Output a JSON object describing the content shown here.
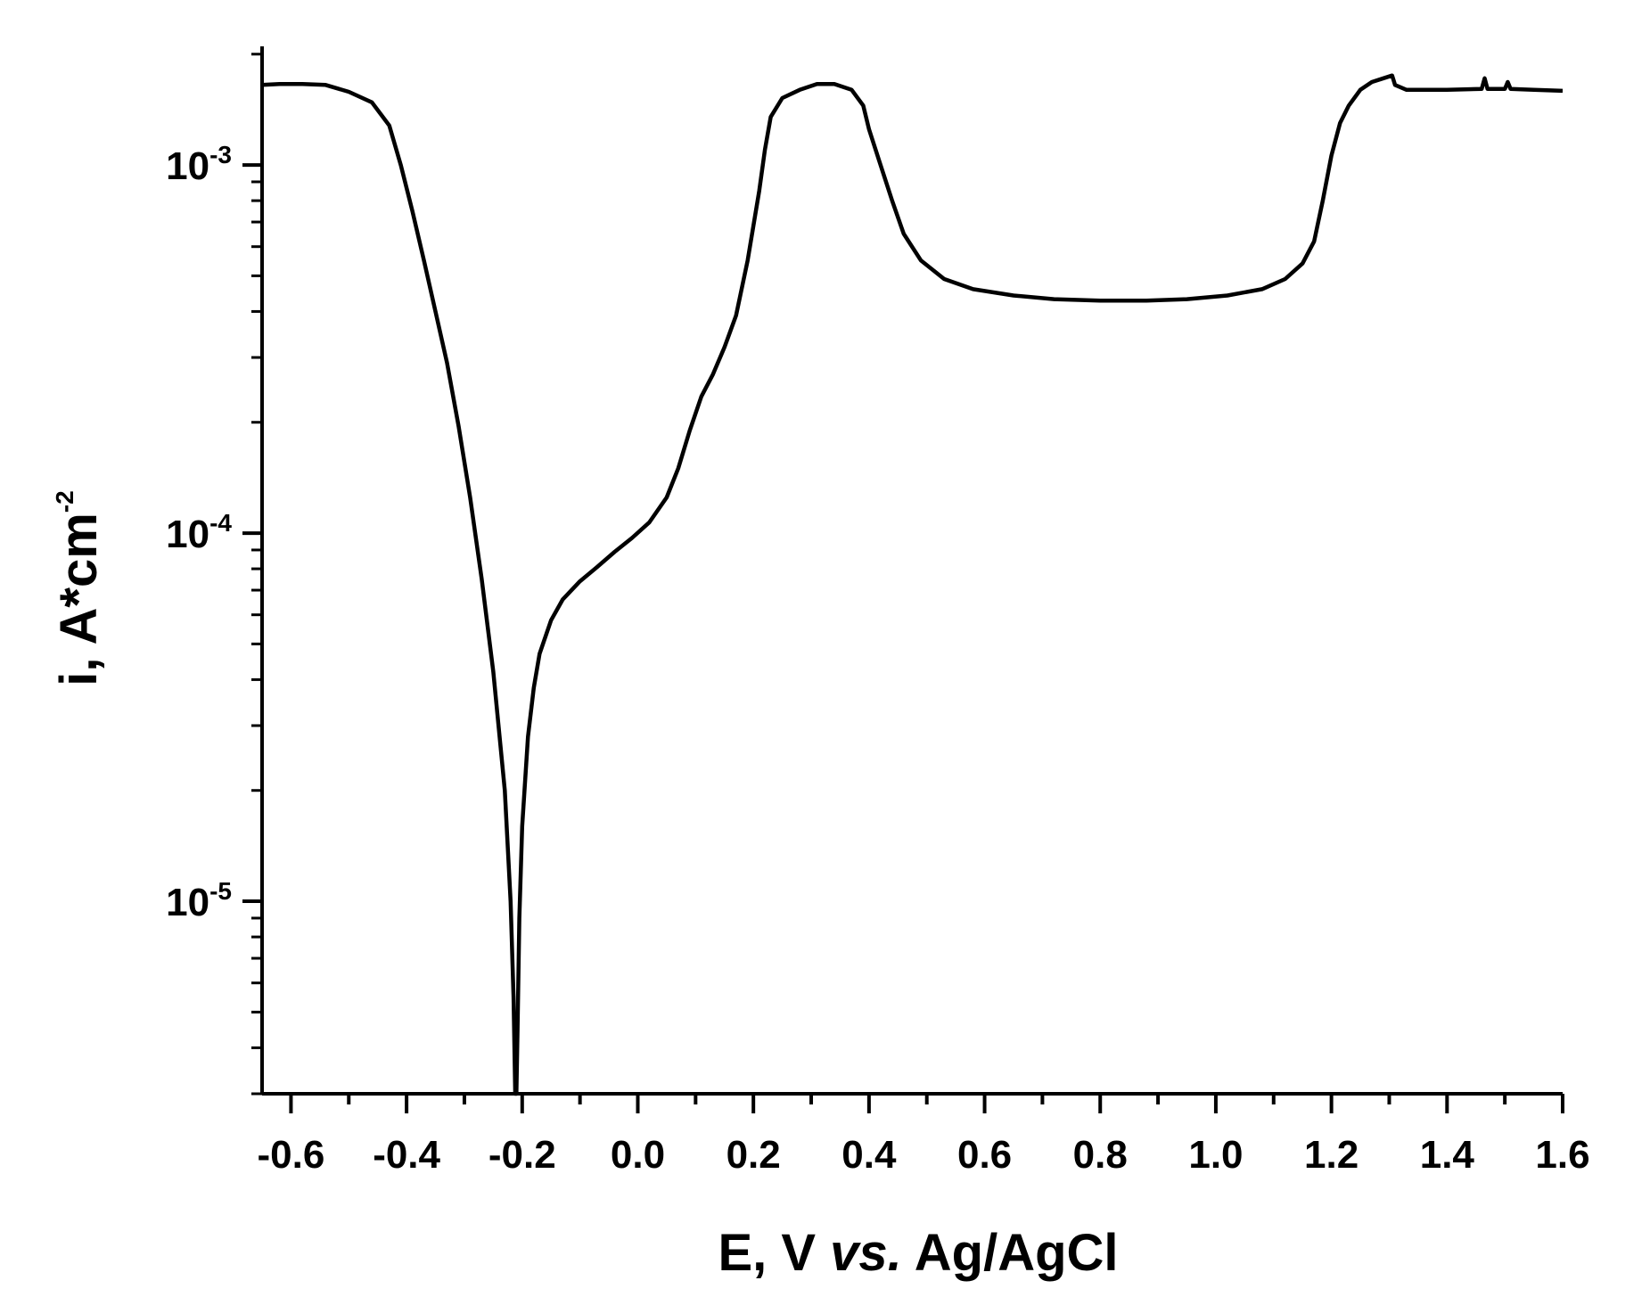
{
  "chart_data": {
    "type": "line",
    "title": "",
    "xlabel_parts": [
      "E, V ",
      "vs.",
      " Ag/AgCl"
    ],
    "ylabel": "i, A*cm",
    "ylabel_exponent": "-2",
    "xlim": [
      -0.65,
      1.6
    ],
    "ylim": [
      3e-06,
      0.0021
    ],
    "yscale": "log",
    "grid": false,
    "x_ticks": [
      "-0.6",
      "-0.4",
      "-0.2",
      "0.0",
      "0.2",
      "0.4",
      "0.6",
      "0.8",
      "1.0",
      "1.2",
      "1.4",
      "1.6"
    ],
    "x_tick_values": [
      -0.6,
      -0.4,
      -0.2,
      0.0,
      0.2,
      0.4,
      0.6,
      0.8,
      1.0,
      1.2,
      1.4,
      1.6
    ],
    "y_ticks": [
      {
        "value": 0.001,
        "base": "10",
        "exp": "-3"
      },
      {
        "value": 0.0001,
        "base": "10",
        "exp": "-4"
      },
      {
        "value": 1e-05,
        "base": "10",
        "exp": "-5"
      }
    ],
    "series": [
      {
        "color": "#000000",
        "points": [
          [
            -0.65,
            0.00165
          ],
          [
            -0.62,
            0.00166
          ],
          [
            -0.58,
            0.00166
          ],
          [
            -0.54,
            0.00165
          ],
          [
            -0.5,
            0.00158
          ],
          [
            -0.46,
            0.00148
          ],
          [
            -0.43,
            0.00128
          ],
          [
            -0.41,
            0.001
          ],
          [
            -0.39,
            0.00075
          ],
          [
            -0.37,
            0.00055
          ],
          [
            -0.35,
            0.0004
          ],
          [
            -0.33,
            0.00029
          ],
          [
            -0.31,
            0.000195
          ],
          [
            -0.29,
            0.000125
          ],
          [
            -0.27,
            7.5e-05
          ],
          [
            -0.25,
            4.2e-05
          ],
          [
            -0.23,
            2e-05
          ],
          [
            -0.22,
            1e-05
          ],
          [
            -0.215,
            5.5e-06
          ],
          [
            -0.212,
            3e-06
          ],
          [
            -0.21,
            3e-06
          ],
          [
            -0.208,
            4.5e-06
          ],
          [
            -0.205,
            9e-06
          ],
          [
            -0.2,
            1.6e-05
          ],
          [
            -0.19,
            2.8e-05
          ],
          [
            -0.18,
            3.8e-05
          ],
          [
            -0.17,
            4.7e-05
          ],
          [
            -0.15,
            5.8e-05
          ],
          [
            -0.13,
            6.6e-05
          ],
          [
            -0.1,
            7.4e-05
          ],
          [
            -0.07,
            8.1e-05
          ],
          [
            -0.04,
            8.9e-05
          ],
          [
            -0.01,
            9.7e-05
          ],
          [
            0.02,
            0.000107
          ],
          [
            0.05,
            0.000125
          ],
          [
            0.07,
            0.00015
          ],
          [
            0.09,
            0.00019
          ],
          [
            0.11,
            0.000235
          ],
          [
            0.13,
            0.00027
          ],
          [
            0.15,
            0.00032
          ],
          [
            0.17,
            0.00039
          ],
          [
            0.19,
            0.00055
          ],
          [
            0.21,
            0.00085
          ],
          [
            0.22,
            0.0011
          ],
          [
            0.23,
            0.00135
          ],
          [
            0.25,
            0.00152
          ],
          [
            0.28,
            0.0016
          ],
          [
            0.31,
            0.00166
          ],
          [
            0.34,
            0.00166
          ],
          [
            0.37,
            0.0016
          ],
          [
            0.39,
            0.00145
          ],
          [
            0.4,
            0.00125
          ],
          [
            0.42,
            0.001
          ],
          [
            0.44,
            0.0008
          ],
          [
            0.46,
            0.00065
          ],
          [
            0.49,
            0.00055
          ],
          [
            0.53,
            0.00049
          ],
          [
            0.58,
            0.00046
          ],
          [
            0.65,
            0.000442
          ],
          [
            0.72,
            0.000432
          ],
          [
            0.8,
            0.000428
          ],
          [
            0.88,
            0.000428
          ],
          [
            0.95,
            0.000432
          ],
          [
            1.02,
            0.000442
          ],
          [
            1.08,
            0.00046
          ],
          [
            1.12,
            0.00049
          ],
          [
            1.15,
            0.00054
          ],
          [
            1.17,
            0.00062
          ],
          [
            1.185,
            0.0008
          ],
          [
            1.2,
            0.00106
          ],
          [
            1.215,
            0.0013
          ],
          [
            1.23,
            0.00145
          ],
          [
            1.25,
            0.0016
          ],
          [
            1.27,
            0.00168
          ],
          [
            1.29,
            0.00172
          ],
          [
            1.305,
            0.00175
          ],
          [
            1.31,
            0.00165
          ],
          [
            1.33,
            0.0016
          ],
          [
            1.4,
            0.0016
          ],
          [
            1.46,
            0.00161
          ],
          [
            1.465,
            0.00172
          ],
          [
            1.47,
            0.00161
          ],
          [
            1.5,
            0.00161
          ],
          [
            1.505,
            0.00168
          ],
          [
            1.51,
            0.00161
          ],
          [
            1.55,
            0.0016
          ],
          [
            1.6,
            0.00159
          ]
        ]
      }
    ]
  }
}
